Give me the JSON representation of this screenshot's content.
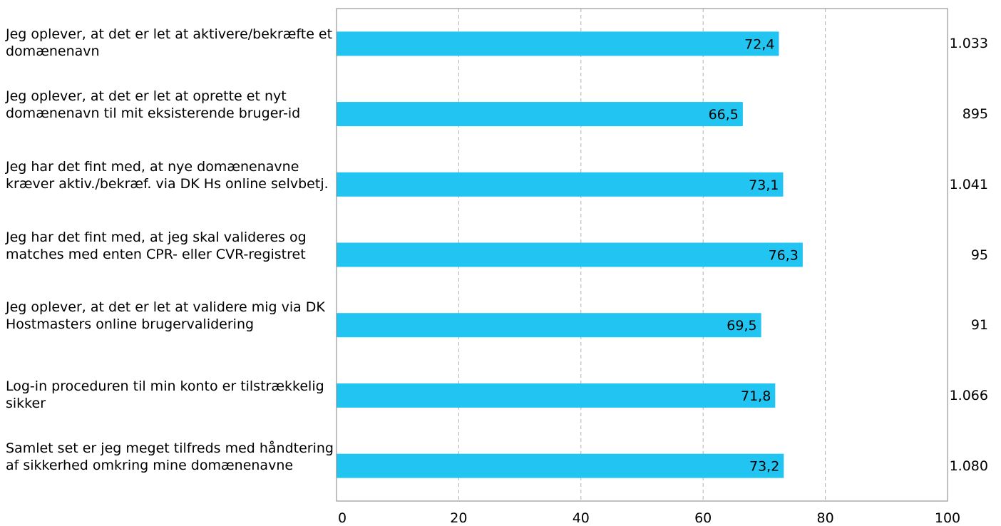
{
  "chart_data": {
    "type": "bar",
    "orientation": "horizontal",
    "categories": [
      "Jeg oplever, at det er let at aktivere/bekræfte et domænenavn",
      "Jeg oplever, at det er let at oprette et nyt domænenavn til mit eksisterende bruger-id",
      "Jeg har det fint med, at nye domænenavne kræver aktiv./bekræf. via DK Hs online selvbetj.",
      "Jeg har det fint med, at jeg skal valideres og matches med enten CPR- eller CVR-registret",
      "Jeg oplever, at det er let at validere mig via DK Hostmasters online brugervalidering",
      "Log-in proceduren til min konto er tilstrækkelig sikker",
      "Samlet set er jeg meget tilfreds med håndtering af sikkerhed omkring mine domænenavne"
    ],
    "values": [
      72.4,
      66.5,
      73.1,
      76.3,
      69.5,
      71.8,
      73.2
    ],
    "value_labels": [
      "72,4",
      "66,5",
      "73,1",
      "76,3",
      "69,5",
      "71,8",
      "73,2"
    ],
    "n_labels": [
      "1.033",
      "895",
      "1.041",
      "95",
      "91",
      "1.066",
      "1.080"
    ],
    "xlim": [
      0,
      100
    ],
    "xticks": [
      0,
      20,
      40,
      60,
      80,
      100
    ],
    "xtick_labels": [
      "0",
      "20",
      "40",
      "60",
      "80",
      "100"
    ],
    "grid": "vertical-dashed",
    "bar_color": "#22c4f2",
    "title": "",
    "xlabel": "",
    "ylabel": ""
  }
}
